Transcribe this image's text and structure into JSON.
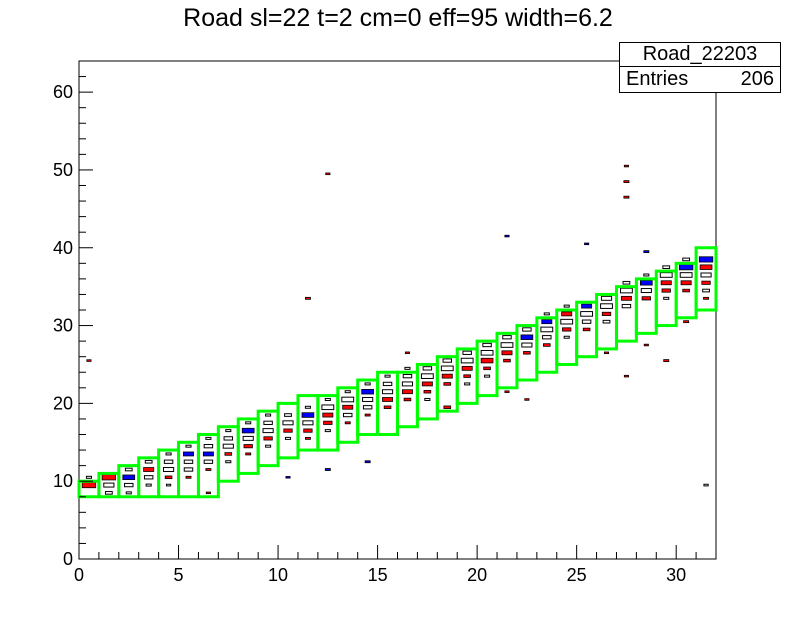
{
  "chart_data": {
    "type": "heatmap",
    "title": "Road sl=22 t=2 cm=0 eff=95 width=6.2",
    "xlim": [
      0,
      32
    ],
    "ylim": [
      0,
      64
    ],
    "x_ticks": [
      0,
      5,
      10,
      15,
      20,
      25,
      30
    ],
    "y_ticks": [
      0,
      10,
      20,
      30,
      40,
      50,
      60
    ],
    "stats": {
      "name": "Road_22203",
      "entries_label": "Entries",
      "entries": "206"
    },
    "road_width": 6.2,
    "road_boxes": [
      {
        "x": 0,
        "y0": 8,
        "y1": 10
      },
      {
        "x": 1,
        "y0": 8,
        "y1": 11
      },
      {
        "x": 2,
        "y0": 8,
        "y1": 12
      },
      {
        "x": 3,
        "y0": 8,
        "y1": 13
      },
      {
        "x": 4,
        "y0": 8,
        "y1": 14
      },
      {
        "x": 5,
        "y0": 8,
        "y1": 15
      },
      {
        "x": 6,
        "y0": 8,
        "y1": 16
      },
      {
        "x": 7,
        "y0": 10,
        "y1": 17
      },
      {
        "x": 8,
        "y0": 11,
        "y1": 18
      },
      {
        "x": 9,
        "y0": 12,
        "y1": 19
      },
      {
        "x": 10,
        "y0": 13,
        "y1": 20
      },
      {
        "x": 11,
        "y0": 14,
        "y1": 21
      },
      {
        "x": 12,
        "y0": 14,
        "y1": 21
      },
      {
        "x": 13,
        "y0": 15,
        "y1": 22
      },
      {
        "x": 14,
        "y0": 16,
        "y1": 23
      },
      {
        "x": 15,
        "y0": 16,
        "y1": 24
      },
      {
        "x": 16,
        "y0": 17,
        "y1": 24
      },
      {
        "x": 17,
        "y0": 18,
        "y1": 25
      },
      {
        "x": 18,
        "y0": 19,
        "y1": 26
      },
      {
        "x": 19,
        "y0": 20,
        "y1": 27
      },
      {
        "x": 20,
        "y0": 21,
        "y1": 28
      },
      {
        "x": 21,
        "y0": 22,
        "y1": 29
      },
      {
        "x": 22,
        "y0": 23,
        "y1": 30
      },
      {
        "x": 23,
        "y0": 24,
        "y1": 31
      },
      {
        "x": 24,
        "y0": 25,
        "y1": 32
      },
      {
        "x": 25,
        "y0": 26,
        "y1": 33
      },
      {
        "x": 26,
        "y0": 27,
        "y1": 34
      },
      {
        "x": 27,
        "y0": 28,
        "y1": 35
      },
      {
        "x": 28,
        "y0": 29,
        "y1": 36
      },
      {
        "x": 29,
        "y0": 30,
        "y1": 37
      },
      {
        "x": 30,
        "y0": 31,
        "y1": 38
      },
      {
        "x": 31,
        "y0": 32,
        "y1": 40
      }
    ],
    "cell_colors": {
      "road": "#00ff00",
      "red": "#ff0000",
      "blue": "#0000ff",
      "black": "#000000"
    },
    "cells": [
      [
        0,
        9,
        "red",
        0.8
      ],
      [
        0,
        10,
        "black",
        0.3
      ],
      [
        0,
        25,
        "red",
        0.25
      ],
      [
        1,
        9,
        "black",
        0.6
      ],
      [
        1,
        10,
        "red",
        0.8
      ],
      [
        1,
        8,
        "black",
        0.4
      ],
      [
        2,
        9,
        "black",
        0.5
      ],
      [
        2,
        10,
        "blue",
        0.7
      ],
      [
        2,
        11,
        "black",
        0.4
      ],
      [
        2,
        8,
        "black",
        0.3
      ],
      [
        3,
        10,
        "black",
        0.5
      ],
      [
        3,
        11,
        "red",
        0.6
      ],
      [
        3,
        12,
        "black",
        0.4
      ],
      [
        3,
        9,
        "black",
        0.3
      ],
      [
        4,
        11,
        "black",
        0.6
      ],
      [
        4,
        12,
        "black",
        0.5
      ],
      [
        4,
        10,
        "red",
        0.4
      ],
      [
        4,
        13,
        "black",
        0.3
      ],
      [
        4,
        9,
        "black",
        0.25
      ],
      [
        5,
        12,
        "black",
        0.5
      ],
      [
        5,
        13,
        "blue",
        0.6
      ],
      [
        5,
        11,
        "black",
        0.5
      ],
      [
        5,
        14,
        "black",
        0.3
      ],
      [
        5,
        10,
        "red",
        0.3
      ],
      [
        6,
        13,
        "blue",
        0.6
      ],
      [
        6,
        14,
        "black",
        0.5
      ],
      [
        6,
        12,
        "black",
        0.5
      ],
      [
        6,
        15,
        "black",
        0.3
      ],
      [
        6,
        11,
        "red",
        0.3
      ],
      [
        6,
        8,
        "red",
        0.25
      ],
      [
        7,
        14,
        "black",
        0.6
      ],
      [
        7,
        15,
        "black",
        0.5
      ],
      [
        7,
        13,
        "red",
        0.4
      ],
      [
        7,
        16,
        "black",
        0.3
      ],
      [
        7,
        12,
        "black",
        0.3
      ],
      [
        8,
        15,
        "black",
        0.6
      ],
      [
        8,
        16,
        "blue",
        0.7
      ],
      [
        8,
        14,
        "red",
        0.5
      ],
      [
        8,
        17,
        "black",
        0.3
      ],
      [
        8,
        13,
        "red",
        0.3
      ],
      [
        9,
        16,
        "black",
        0.6
      ],
      [
        9,
        17,
        "black",
        0.5
      ],
      [
        9,
        15,
        "red",
        0.5
      ],
      [
        9,
        18,
        "black",
        0.3
      ],
      [
        9,
        14,
        "black",
        0.3
      ],
      [
        10,
        17,
        "black",
        0.6
      ],
      [
        10,
        16,
        "red",
        0.5
      ],
      [
        10,
        18,
        "black",
        0.4
      ],
      [
        10,
        15,
        "black",
        0.3
      ],
      [
        10,
        10,
        "blue",
        0.25
      ],
      [
        11,
        18,
        "blue",
        0.7
      ],
      [
        11,
        17,
        "black",
        0.6
      ],
      [
        11,
        16,
        "red",
        0.5
      ],
      [
        11,
        19,
        "black",
        0.3
      ],
      [
        11,
        33,
        "red",
        0.3
      ],
      [
        11,
        15,
        "red",
        0.3
      ],
      [
        12,
        19,
        "black",
        0.7
      ],
      [
        12,
        18,
        "red",
        0.6
      ],
      [
        12,
        17,
        "red",
        0.5
      ],
      [
        12,
        20,
        "black",
        0.3
      ],
      [
        12,
        16,
        "black",
        0.3
      ],
      [
        12,
        11,
        "blue",
        0.3
      ],
      [
        12,
        49,
        "red",
        0.25
      ],
      [
        13,
        20,
        "black",
        0.7
      ],
      [
        13,
        19,
        "red",
        0.6
      ],
      [
        13,
        18,
        "black",
        0.5
      ],
      [
        13,
        21,
        "black",
        0.3
      ],
      [
        13,
        17,
        "red",
        0.3
      ],
      [
        14,
        21,
        "blue",
        0.7
      ],
      [
        14,
        20,
        "black",
        0.6
      ],
      [
        14,
        19,
        "black",
        0.5
      ],
      [
        14,
        22,
        "black",
        0.3
      ],
      [
        14,
        18,
        "red",
        0.3
      ],
      [
        14,
        12,
        "blue",
        0.3
      ],
      [
        15,
        21,
        "black",
        0.6
      ],
      [
        15,
        20,
        "red",
        0.6
      ],
      [
        15,
        22,
        "black",
        0.5
      ],
      [
        15,
        19,
        "red",
        0.4
      ],
      [
        15,
        23,
        "black",
        0.3
      ],
      [
        16,
        22,
        "black",
        0.6
      ],
      [
        16,
        21,
        "red",
        0.6
      ],
      [
        16,
        23,
        "black",
        0.5
      ],
      [
        16,
        20,
        "red",
        0.4
      ],
      [
        16,
        24,
        "black",
        0.3
      ],
      [
        16,
        26,
        "red",
        0.25
      ],
      [
        17,
        23,
        "black",
        0.7
      ],
      [
        17,
        22,
        "red",
        0.6
      ],
      [
        17,
        24,
        "black",
        0.5
      ],
      [
        17,
        21,
        "red",
        0.4
      ],
      [
        17,
        20,
        "black",
        0.3
      ],
      [
        18,
        24,
        "black",
        0.7
      ],
      [
        18,
        23,
        "red",
        0.6
      ],
      [
        18,
        25,
        "black",
        0.5
      ],
      [
        18,
        22,
        "red",
        0.4
      ],
      [
        18,
        19,
        "red",
        0.4
      ],
      [
        19,
        25,
        "black",
        0.7
      ],
      [
        19,
        24,
        "red",
        0.6
      ],
      [
        19,
        26,
        "black",
        0.5
      ],
      [
        19,
        23,
        "red",
        0.4
      ],
      [
        19,
        22,
        "black",
        0.3
      ],
      [
        20,
        26,
        "black",
        0.7
      ],
      [
        20,
        25,
        "red",
        0.7
      ],
      [
        20,
        27,
        "black",
        0.5
      ],
      [
        20,
        24,
        "red",
        0.4
      ],
      [
        20,
        23,
        "black",
        0.3
      ],
      [
        21,
        27,
        "black",
        0.7
      ],
      [
        21,
        26,
        "red",
        0.6
      ],
      [
        21,
        28,
        "black",
        0.5
      ],
      [
        21,
        25,
        "red",
        0.4
      ],
      [
        21,
        41,
        "blue",
        0.25
      ],
      [
        21,
        21,
        "red",
        0.25
      ],
      [
        22,
        28,
        "blue",
        0.7
      ],
      [
        22,
        27,
        "black",
        0.6
      ],
      [
        22,
        29,
        "black",
        0.5
      ],
      [
        22,
        26,
        "red",
        0.4
      ],
      [
        22,
        20,
        "red",
        0.25
      ],
      [
        23,
        29,
        "black",
        0.7
      ],
      [
        23,
        30,
        "blue",
        0.6
      ],
      [
        23,
        28,
        "black",
        0.5
      ],
      [
        23,
        27,
        "red",
        0.4
      ],
      [
        23,
        31,
        "black",
        0.3
      ],
      [
        24,
        30,
        "black",
        0.7
      ],
      [
        24,
        31,
        "red",
        0.6
      ],
      [
        24,
        29,
        "red",
        0.5
      ],
      [
        24,
        32,
        "black",
        0.3
      ],
      [
        24,
        28,
        "black",
        0.3
      ],
      [
        25,
        31,
        "black",
        0.7
      ],
      [
        25,
        32,
        "blue",
        0.6
      ],
      [
        25,
        30,
        "black",
        0.5
      ],
      [
        25,
        29,
        "red",
        0.4
      ],
      [
        25,
        40,
        "blue",
        0.25
      ],
      [
        26,
        32,
        "black",
        0.7
      ],
      [
        26,
        33,
        "black",
        0.6
      ],
      [
        26,
        31,
        "red",
        0.5
      ],
      [
        26,
        30,
        "black",
        0.4
      ],
      [
        26,
        26,
        "red",
        0.25
      ],
      [
        27,
        34,
        "black",
        0.7
      ],
      [
        27,
        33,
        "red",
        0.6
      ],
      [
        27,
        32,
        "black",
        0.5
      ],
      [
        27,
        35,
        "black",
        0.4
      ],
      [
        27,
        46,
        "red",
        0.3
      ],
      [
        27,
        48,
        "red",
        0.3
      ],
      [
        27,
        50,
        "red",
        0.25
      ],
      [
        27,
        23,
        "red",
        0.25
      ],
      [
        28,
        35,
        "blue",
        0.7
      ],
      [
        28,
        34,
        "black",
        0.6
      ],
      [
        28,
        33,
        "red",
        0.5
      ],
      [
        28,
        36,
        "black",
        0.3
      ],
      [
        28,
        39,
        "blue",
        0.3
      ],
      [
        28,
        27,
        "red",
        0.25
      ],
      [
        29,
        36,
        "black",
        0.7
      ],
      [
        29,
        35,
        "red",
        0.6
      ],
      [
        29,
        34,
        "red",
        0.5
      ],
      [
        29,
        37,
        "black",
        0.4
      ],
      [
        29,
        33,
        "black",
        0.3
      ],
      [
        29,
        25,
        "red",
        0.3
      ],
      [
        30,
        37,
        "blue",
        0.8
      ],
      [
        30,
        36,
        "black",
        0.7
      ],
      [
        30,
        35,
        "red",
        0.6
      ],
      [
        30,
        38,
        "black",
        0.4
      ],
      [
        30,
        34,
        "red",
        0.4
      ],
      [
        30,
        30,
        "red",
        0.3
      ],
      [
        31,
        38,
        "blue",
        0.8
      ],
      [
        31,
        37,
        "red",
        0.7
      ],
      [
        31,
        36,
        "black",
        0.6
      ],
      [
        31,
        35,
        "red",
        0.5
      ],
      [
        31,
        34,
        "black",
        0.4
      ],
      [
        31,
        33,
        "red",
        0.3
      ],
      [
        31,
        9,
        "black",
        0.25
      ]
    ]
  }
}
